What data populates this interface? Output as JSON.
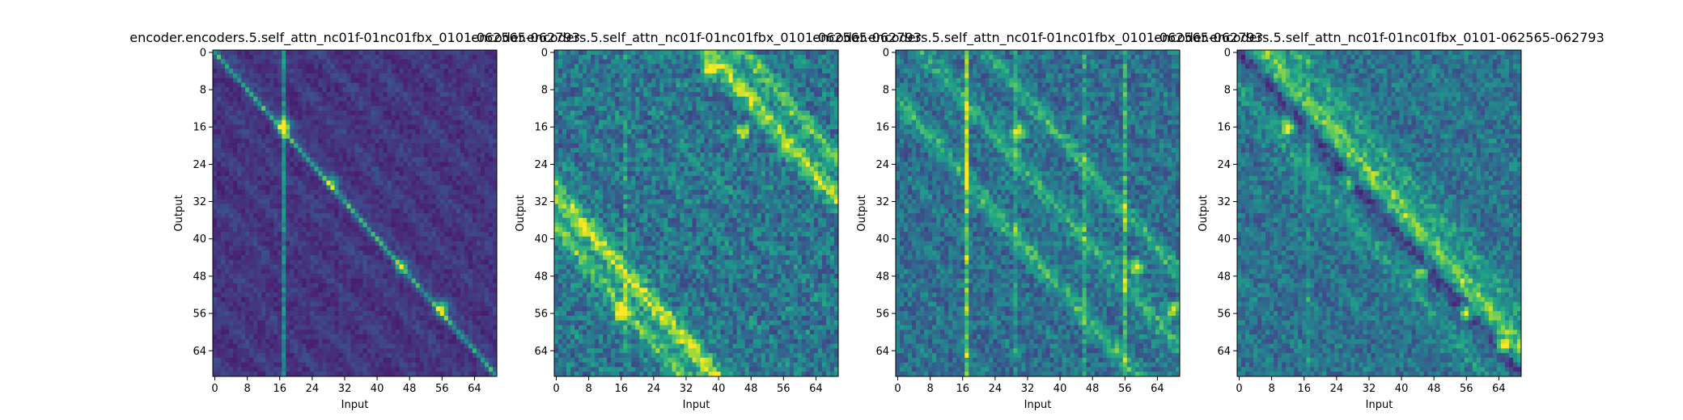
{
  "chart_data": [
    {
      "type": "heatmap",
      "title": "encoder.encoders.5.self_attn_nc01f-01nc01fbx_0101-062565-062793",
      "xlabel": "Input",
      "ylabel": "Output",
      "x_ticks": [
        0,
        8,
        16,
        24,
        32,
        40,
        48,
        56,
        64
      ],
      "y_ticks": [
        0,
        8,
        16,
        24,
        32,
        40,
        48,
        56,
        64
      ],
      "xlim": [
        0,
        70
      ],
      "ylim": [
        0,
        70
      ],
      "colormap": "viridis",
      "pattern": {
        "diag": [
          {
            "off": 0,
            "s": 0.55,
            "w": 0.6
          }
        ],
        "peaks": [
          [
            16,
            17,
            1.0
          ],
          [
            55,
            56,
            0.7
          ],
          [
            46,
            46,
            0.55
          ],
          [
            28,
            29,
            0.45
          ]
        ],
        "col_bright": [
          [
            17,
            0.35
          ]
        ],
        "noise": 0.12,
        "base": 0.08
      }
    },
    {
      "type": "heatmap",
      "title": "encoder.encoders.5.self_attn_nc01f-01nc01fbx_0101-062565-062793",
      "xlabel": "Input",
      "ylabel": "Output",
      "x_ticks": [
        0,
        8,
        16,
        24,
        32,
        40,
        48,
        56,
        64
      ],
      "y_ticks": [
        0,
        8,
        16,
        24,
        32,
        40,
        48,
        56,
        64
      ],
      "xlim": [
        0,
        70
      ],
      "ylim": [
        0,
        70
      ],
      "colormap": "viridis",
      "pattern": {
        "diag": [
          {
            "off": 38,
            "s": 0.55,
            "w": 2.2
          },
          {
            "off": -30,
            "s": 0.6,
            "w": 2.2
          },
          {
            "off": 46,
            "s": 0.35,
            "w": 2
          },
          {
            "off": -38,
            "s": 0.4,
            "w": 2
          }
        ],
        "peaks": [
          [
            56,
            16,
            0.8
          ],
          [
            4,
            38,
            0.7
          ],
          [
            17,
            46,
            0.6
          ]
        ],
        "col_bright": [
          [
            17,
            0.15
          ]
        ],
        "noise": 0.35,
        "base": 0.2
      }
    },
    {
      "type": "heatmap",
      "title": "encoder.encoders.5.self_attn_nc01f-01nc01fbx_0101-062565-062793",
      "xlabel": "Input",
      "ylabel": "Output",
      "x_ticks": [
        0,
        8,
        16,
        24,
        32,
        40,
        48,
        56,
        64
      ],
      "y_ticks": [
        0,
        8,
        16,
        24,
        32,
        40,
        48,
        56,
        64
      ],
      "xlim": [
        0,
        70
      ],
      "ylim": [
        0,
        70
      ],
      "colormap": "viridis",
      "pattern": {
        "diag": [
          {
            "off": 6,
            "s": 0.3,
            "w": 2
          },
          {
            "off": -10,
            "s": 0.3,
            "w": 2
          },
          {
            "off": 22,
            "s": 0.25,
            "w": 2
          }
        ],
        "peaks": [
          [
            46,
            59,
            0.7
          ],
          [
            55,
            68,
            0.7
          ],
          [
            17,
            30,
            0.7
          ]
        ],
        "col_bright": [
          [
            17,
            0.45
          ],
          [
            56,
            0.3
          ],
          [
            46,
            0.2
          ],
          [
            29,
            0.15
          ]
        ],
        "noise": 0.3,
        "base": 0.2
      }
    },
    {
      "type": "heatmap",
      "title": "encoder.encoders.5.self_attn_nc01f-01nc01fbx_0101-062565-062793",
      "xlabel": "Input",
      "ylabel": "Output",
      "x_ticks": [
        0,
        8,
        16,
        24,
        32,
        40,
        48,
        56,
        64
      ],
      "y_ticks": [
        0,
        8,
        16,
        24,
        32,
        40,
        48,
        56,
        64
      ],
      "xlim": [
        0,
        70
      ],
      "ylim": [
        0,
        70
      ],
      "colormap": "viridis",
      "pattern": {
        "diag": [
          {
            "off": 6,
            "s": 0.45,
            "w": 2.5
          },
          {
            "off": 14,
            "s": 0.25,
            "w": 2
          },
          {
            "off": -8,
            "s": 0.2,
            "w": 2
          }
        ],
        "dark_diag": 0,
        "peaks": [
          [
            16,
            12,
            0.7
          ],
          [
            56,
            56,
            0.7
          ],
          [
            63,
            65,
            0.75
          ],
          [
            47,
            45,
            0.55
          ],
          [
            28,
            27,
            0.5
          ]
        ],
        "col_bright": [
          [
            17,
            0.12
          ]
        ],
        "noise": 0.28,
        "base": 0.22
      }
    }
  ]
}
